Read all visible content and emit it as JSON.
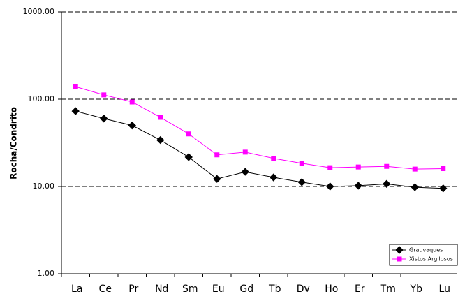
{
  "chart_data": {
    "type": "line",
    "y_label": "Rocha/Condrito",
    "categories": [
      "La",
      "Ce",
      "Pr",
      "Nd",
      "Sm",
      "Eu",
      "Gd",
      "Tb",
      "Dv",
      "Ho",
      "Er",
      "Tm",
      "Yb",
      "Lu"
    ],
    "series": [
      {
        "name": "Grauvaques",
        "color": "#000000",
        "marker": "diamond",
        "values": [
          73,
          60,
          50,
          34,
          21.7,
          12.2,
          14.7,
          12.7,
          11.2,
          10,
          10.2,
          10.7,
          9.8,
          9.5
        ]
      },
      {
        "name": "Xistos Argilosos",
        "color": "#ff00ff",
        "marker": "square",
        "values": [
          139,
          112,
          93,
          62,
          40,
          23,
          24.7,
          21,
          18.4,
          16.4,
          16.7,
          17,
          15.8,
          16
        ]
      }
    ],
    "ylim": [
      1,
      1000
    ],
    "yticks": [
      {
        "value": 1,
        "label": "1.00"
      },
      {
        "value": 10,
        "label": "10.00"
      },
      {
        "value": 100,
        "label": "100.00"
      },
      {
        "value": 1000,
        "label": "1000.00"
      }
    ],
    "log_y": true,
    "grid": true,
    "legend": "lower right"
  }
}
